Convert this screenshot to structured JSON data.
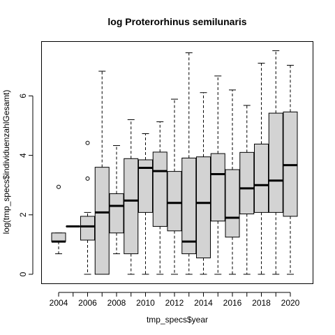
{
  "chart_data": {
    "type": "boxplot",
    "title": "log Proterorhinus semilunaris",
    "xlabel": "tmp_specs$year",
    "ylabel": "log(tmp_specs$individuenzahlGesamt)",
    "ylim": [
      -0.3,
      7.8
    ],
    "y_ticks": [
      0,
      2,
      4,
      6
    ],
    "x_tick_labels": [
      "2004",
      "2006",
      "2008",
      "2010",
      "2012",
      "2014",
      "2016",
      "2018",
      "2020"
    ],
    "box_fill": "#d3d3d3",
    "categories": [
      "2004",
      "2005",
      "2006",
      "2007",
      "2008",
      "2009",
      "2010",
      "2011",
      "2012",
      "2013",
      "2014",
      "2015",
      "2016",
      "2017",
      "2018",
      "2019",
      "2020"
    ],
    "boxes": [
      {
        "min": 0.69,
        "q1": 1.1,
        "median": 1.1,
        "q3": 1.39,
        "max": 1.39,
        "outliers": [
          2.94
        ]
      },
      {
        "min": 1.61,
        "q1": 1.61,
        "median": 1.61,
        "q3": 1.61,
        "max": 1.61,
        "outliers": []
      },
      {
        "min": 0.0,
        "q1": 1.15,
        "median": 1.61,
        "q3": 1.95,
        "max": 2.08,
        "outliers": [
          3.22,
          4.42
        ]
      },
      {
        "min": 0.0,
        "q1": 0.0,
        "median": 2.08,
        "q3": 3.6,
        "max": 6.83,
        "outliers": []
      },
      {
        "min": 0.69,
        "q1": 1.39,
        "median": 2.3,
        "q3": 2.71,
        "max": 4.33,
        "outliers": []
      },
      {
        "min": 0.0,
        "q1": 0.69,
        "median": 2.48,
        "q3": 3.89,
        "max": 5.2,
        "outliers": []
      },
      {
        "min": 0.0,
        "q1": 2.08,
        "median": 3.58,
        "q3": 3.85,
        "max": 4.73,
        "outliers": []
      },
      {
        "min": 0.0,
        "q1": 1.61,
        "median": 3.47,
        "q3": 4.11,
        "max": 5.13,
        "outliers": []
      },
      {
        "min": 0.0,
        "q1": 1.46,
        "median": 2.4,
        "q3": 3.46,
        "max": 5.89,
        "outliers": []
      },
      {
        "min": 0.0,
        "q1": 0.69,
        "median": 1.1,
        "q3": 3.91,
        "max": 7.45,
        "outliers": []
      },
      {
        "min": 0.0,
        "q1": 0.55,
        "median": 2.4,
        "q3": 3.95,
        "max": 6.11,
        "outliers": []
      },
      {
        "min": 0.0,
        "q1": 1.79,
        "median": 3.37,
        "q3": 4.06,
        "max": 6.67,
        "outliers": []
      },
      {
        "min": 0.0,
        "q1": 1.25,
        "median": 1.9,
        "q3": 3.52,
        "max": 6.2,
        "outliers": []
      },
      {
        "min": 0.0,
        "q1": 2.03,
        "median": 2.89,
        "q3": 4.1,
        "max": 5.68,
        "outliers": []
      },
      {
        "min": 0.0,
        "q1": 2.08,
        "median": 3.0,
        "q3": 4.38,
        "max": 7.1,
        "outliers": []
      },
      {
        "min": 0.0,
        "q1": 2.08,
        "median": 3.15,
        "q3": 5.42,
        "max": 7.52,
        "outliers": []
      },
      {
        "min": 0.0,
        "q1": 1.95,
        "median": 3.67,
        "q3": 5.46,
        "max": 7.03,
        "outliers": []
      }
    ]
  }
}
